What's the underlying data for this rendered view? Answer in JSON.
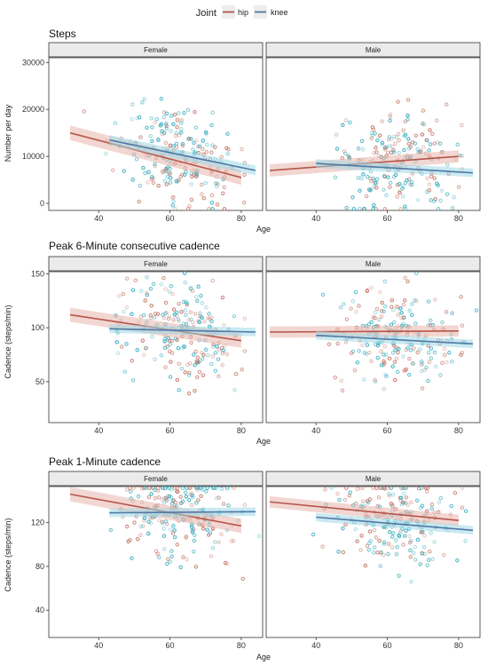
{
  "legend": {
    "title": "Joint",
    "items": [
      {
        "label": "hip",
        "color": "#C77C6E"
      },
      {
        "label": "knee",
        "color": "#3AAFC1"
      }
    ]
  },
  "colors": {
    "hip": "#C77C6E",
    "knee": "#3AAFC1",
    "hip_line": "#B5564A",
    "knee_line": "#4E79A7",
    "panel_border": "#333333",
    "strip_fill": "#EBEBEB",
    "grid": "#F2F2F2"
  },
  "chart_data": [
    {
      "type": "scatter",
      "title": "Steps",
      "xlabel": "Age",
      "ylabel": "Number per day",
      "xlim": [
        26,
        86
      ],
      "ylim": [
        -1500,
        31000
      ],
      "xticks": [
        40,
        60,
        80
      ],
      "yticks": [
        0,
        10000,
        20000,
        30000
      ],
      "ytick_labels": [
        "0",
        "10000",
        "20000",
        "30000"
      ],
      "facets": [
        {
          "label": "Female",
          "trend": {
            "hip": {
              "x": [
                32,
                80
              ],
              "y": [
                15000,
                5500
              ],
              "band": 1200
            },
            "knee": {
              "x": [
                43,
                84
              ],
              "y": [
                13500,
                7000
              ],
              "band": 800
            }
          }
        },
        {
          "label": "Male",
          "trend": {
            "hip": {
              "x": [
                27,
                80
              ],
              "y": [
                7000,
                10000
              ],
              "band": 1000
            },
            "knee": {
              "x": [
                40,
                84
              ],
              "y": [
                8500,
                6500
              ],
              "band": 700
            }
          }
        }
      ]
    },
    {
      "type": "scatter",
      "title": "Peak 6-Minute consecutive cadence",
      "xlabel": "Age",
      "ylabel": "Cadence (steps/min)",
      "xlim": [
        26,
        86
      ],
      "ylim": [
        12,
        152
      ],
      "xticks": [
        40,
        60,
        80
      ],
      "yticks": [
        50,
        100,
        150
      ],
      "ytick_labels": [
        "50",
        "100",
        "150"
      ],
      "facets": [
        {
          "label": "Female",
          "trend": {
            "hip": {
              "x": [
                32,
                80
              ],
              "y": [
                112,
                88
              ],
              "band": 5
            },
            "knee": {
              "x": [
                43,
                84
              ],
              "y": [
                99,
                96
              ],
              "band": 3
            }
          }
        },
        {
          "label": "Male",
          "trend": {
            "hip": {
              "x": [
                27,
                80
              ],
              "y": [
                96,
                97
              ],
              "band": 4
            },
            "knee": {
              "x": [
                40,
                84
              ],
              "y": [
                93,
                85
              ],
              "band": 3
            }
          }
        }
      ]
    },
    {
      "type": "scatter",
      "title": "Peak 1-Minute cadence",
      "xlabel": "Age",
      "ylabel": "Cadence (steps/min)",
      "xlim": [
        26,
        86
      ],
      "ylim": [
        15,
        153
      ],
      "xticks": [
        40,
        60,
        80
      ],
      "yticks": [
        40,
        80,
        120
      ],
      "ytick_labels": [
        "40",
        "80",
        "120"
      ],
      "facets": [
        {
          "label": "Female",
          "trend": {
            "hip": {
              "x": [
                32,
                80
              ],
              "y": [
                146,
                117
              ],
              "band": 5
            },
            "knee": {
              "x": [
                43,
                84
              ],
              "y": [
                129,
                130
              ],
              "band": 3
            }
          }
        },
        {
          "label": "Male",
          "trend": {
            "hip": {
              "x": [
                27,
                80
              ],
              "y": [
                139,
                122
              ],
              "band": 4
            },
            "knee": {
              "x": [
                40,
                84
              ],
              "y": [
                125,
                113
              ],
              "band": 3
            }
          }
        }
      ]
    }
  ]
}
